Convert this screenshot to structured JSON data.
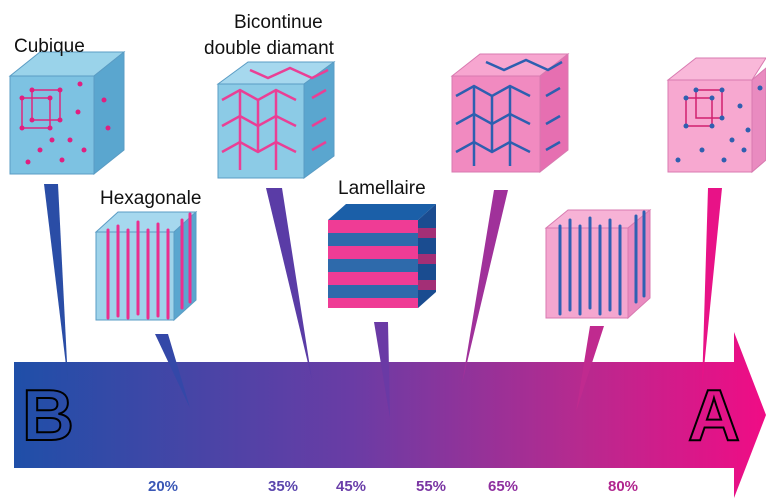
{
  "phases": [
    {
      "label": "Cubique"
    },
    {
      "label": "Hexagonale"
    },
    {
      "label_line1": "Bicontinue",
      "label_line2": "double diamant"
    },
    {
      "label": "Lamellaire"
    }
  ],
  "axis": {
    "start": "B",
    "end": "A",
    "ticks": [
      "20%",
      "35%",
      "45%",
      "55%",
      "65%",
      "80%"
    ]
  },
  "colors": {
    "blue": "#1f4fa8",
    "pink": "#ea0f86",
    "tick_blue": "#3b58b6",
    "tick_purple": "#7a35a3",
    "tick_magenta": "#b0268e"
  }
}
